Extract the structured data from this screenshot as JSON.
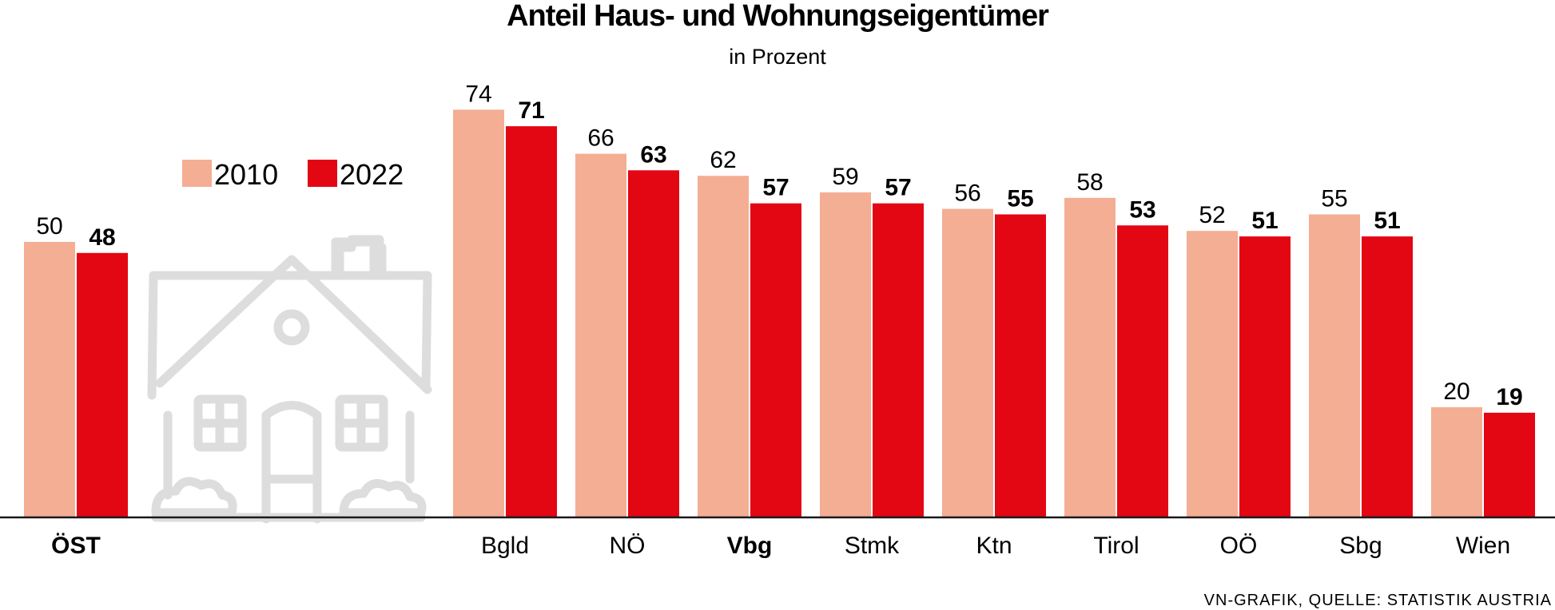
{
  "chart_data": {
    "type": "bar",
    "title": "Anteil Haus- und Wohnungseigentümer",
    "subtitle": "in Prozent",
    "categories": [
      "ÖST",
      "Bgld",
      "NÖ",
      "Vbg",
      "Stmk",
      "Ktn",
      "Tirol",
      "OÖ",
      "Sbg",
      "Wien"
    ],
    "bold_categories": [
      "ÖST",
      "Vbg"
    ],
    "series": [
      {
        "name": "2010",
        "values": [
          50,
          74,
          66,
          62,
          59,
          56,
          58,
          52,
          55,
          20
        ],
        "color": "#f4ae94"
      },
      {
        "name": "2022",
        "values": [
          48,
          71,
          63,
          57,
          57,
          55,
          53,
          51,
          51,
          19
        ],
        "color": "#e30613"
      }
    ],
    "ylim": [
      0,
      80
    ],
    "grid": false,
    "legend_position": "top-left",
    "source": "VN-GRAFIK, QUELLE: STATISTIK AUSTRIA",
    "decoration_icon": "house-outline-icon",
    "decoration_color": "#dddddd",
    "axis_color": "#1a1a1a"
  }
}
